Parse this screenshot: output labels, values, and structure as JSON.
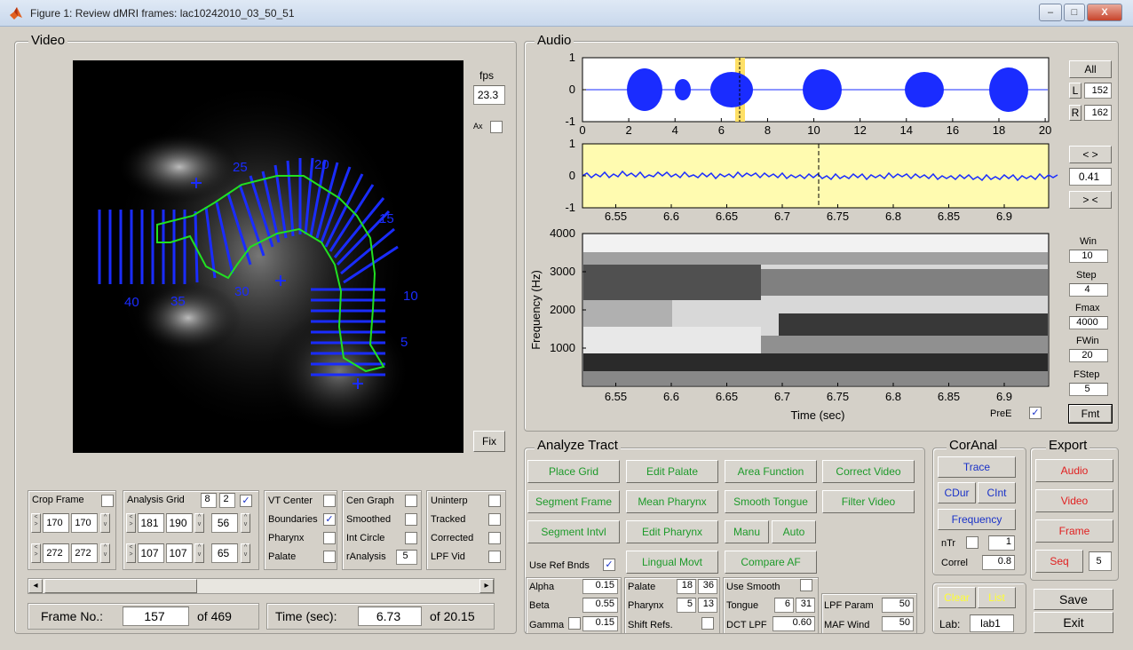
{
  "window": {
    "title": "Figure 1: Review dMRI frames: lac10242010_03_50_51",
    "buttons": [
      "–",
      "□",
      "X"
    ]
  },
  "video": {
    "title": "Video",
    "fps_label": "fps",
    "fps_value": "23.3",
    "ax_label": "Ax",
    "fix_label": "Fix",
    "grid_labels": [
      "25",
      "20",
      "15",
      "10",
      "5",
      "30",
      "35",
      "40"
    ],
    "crop": {
      "label": "Crop Frame",
      "r1": [
        "170",
        "170"
      ],
      "r2": [
        "272",
        "272"
      ]
    },
    "analysis": {
      "label": "Analysis Grid",
      "v1": "8",
      "v2": "2",
      "checked": "✓",
      "r1": [
        "181",
        "190",
        "56"
      ],
      "r2": [
        "107",
        "107",
        "65"
      ]
    },
    "checks": {
      "vt_center": "VT Center",
      "boundaries": "Boundaries",
      "boundaries_mark": "✓",
      "pharynx": "Pharynx",
      "palate": "Palate",
      "cen_graph": "Cen Graph",
      "smoothed": "Smoothed",
      "int_circle": "Int Circle",
      "ranalysis": "rAnalysis",
      "ranalysis_value": "5",
      "uninterp": "Uninterp",
      "tracked": "Tracked",
      "corrected": "Corrected",
      "lpf_vid": "LPF Vid"
    },
    "frame_label": "Frame No.:",
    "frame_value": "157",
    "frame_of": "of 469",
    "time_label": "Time (sec):",
    "time_value": "6.73",
    "time_of": "of 20.15",
    "scroll_left": "◂",
    "scroll_right": "▸"
  },
  "audio": {
    "title": "Audio",
    "all_label": "All",
    "l_label": "L",
    "l_value": "152",
    "r_label": "R",
    "r_value": "162",
    "zoom_out": "< >",
    "zoom_value": "0.41",
    "zoom_in": "> <",
    "win_label": "Win",
    "win_value": "10",
    "step_label": "Step",
    "step_value": "4",
    "fmax_label": "Fmax",
    "fmax_value": "4000",
    "fwin_label": "FWin",
    "fwin_value": "20",
    "fstep_label": "FStep",
    "fstep_value": "5",
    "pree_label": "PreE",
    "pree_mark": "✓",
    "fmt_label": "Fmt"
  },
  "chart_data": [
    {
      "type": "line",
      "title": "",
      "x_ticks": [
        "0",
        "2",
        "4",
        "6",
        "8",
        "10",
        "12",
        "14",
        "16",
        "18",
        "20"
      ],
      "y_ticks": [
        "1",
        "0",
        "-1"
      ],
      "xlim": [
        0,
        20.15
      ],
      "ylim": [
        -1,
        1
      ]
    },
    {
      "type": "line",
      "title": "",
      "x_ticks": [
        "6.55",
        "6.6",
        "6.65",
        "6.7",
        "6.75",
        "6.8",
        "6.85",
        "6.9"
      ],
      "y_ticks": [
        "1",
        "0",
        "-1"
      ],
      "xlim": [
        6.52,
        6.94
      ],
      "ylim": [
        -1,
        1
      ]
    },
    {
      "type": "heatmap",
      "title": "",
      "xlabel": "Time (sec)",
      "ylabel": "Frequency (Hz)",
      "x_ticks": [
        "6.55",
        "6.6",
        "6.65",
        "6.7",
        "6.75",
        "6.8",
        "6.85",
        "6.9"
      ],
      "y_ticks": [
        "4000",
        "3000",
        "2000",
        "1000"
      ],
      "xlim": [
        6.52,
        6.94
      ],
      "ylim": [
        0,
        4000
      ]
    }
  ],
  "analyze": {
    "title": "Analyze Tract",
    "buttons": [
      "Place Grid",
      "Edit Palate",
      "Area Function",
      "Correct Video",
      "Segment Frame",
      "Mean Pharynx",
      "Smooth Tongue",
      "Filter Video",
      "Segment Intvl",
      "Edit Pharynx",
      "Manu",
      "Auto",
      "Lingual Movt",
      "Compare AF"
    ],
    "use_ref_bnds": "Use Ref Bnds",
    "use_ref_mark": "✓",
    "alpha": "Alpha",
    "alpha_v": "0.15",
    "beta": "Beta",
    "beta_v": "0.55",
    "gamma": "Gamma",
    "gamma_v": "0.15",
    "palate": "Palate",
    "palate_v1": "18",
    "palate_v2": "36",
    "pharynx": "Pharynx",
    "pharynx_v1": "5",
    "pharynx_v2": "13",
    "shift_refs": "Shift Refs.",
    "use_smooth": "Use Smooth",
    "tongue": "Tongue",
    "tongue_v1": "6",
    "tongue_v2": "31",
    "dct_lpf": "DCT LPF",
    "dct_lpf_v": "0.60",
    "lpf_param": "LPF Param",
    "lpf_param_v": "50",
    "maf_wind": "MAF Wind",
    "maf_wind_v": "50"
  },
  "coranal": {
    "title": "CorAnal",
    "trace": "Trace",
    "cdur": "CDur",
    "cint": "CInt",
    "frequency": "Frequency",
    "ntr": "nTr",
    "ntr_v": "1",
    "correl": "Correl",
    "correl_v": "0.8",
    "clear": "Clear",
    "list": "List",
    "lab": "Lab:",
    "lab_v": "lab1"
  },
  "export": {
    "title": "Export",
    "audio": "Audio",
    "video": "Video",
    "frame": "Frame",
    "seq": "Seq",
    "seq_v": "5",
    "save": "Save",
    "exit": "Exit"
  }
}
